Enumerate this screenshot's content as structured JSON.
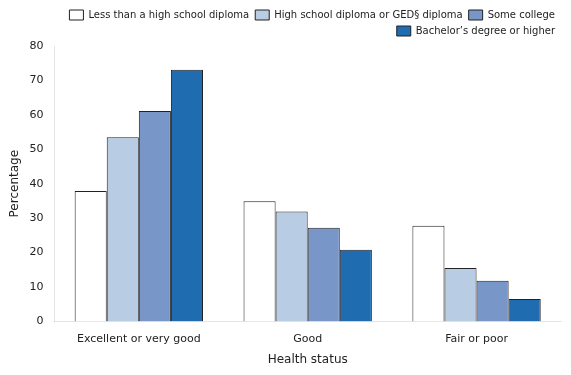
{
  "chart_data": {
    "type": "bar",
    "categories": [
      "Excellent or very good",
      "Good",
      "Fair or poor"
    ],
    "series": [
      {
        "name": "Less than a high school diploma",
        "color": "#ffffff",
        "values": [
          37.9,
          34.9,
          27.8
        ]
      },
      {
        "name": "High school diploma or GED§ diploma",
        "color": "#b8cce4",
        "values": [
          53.5,
          31.9,
          15.5
        ]
      },
      {
        "name": "Some college",
        "color": "#7896c8",
        "values": [
          61.1,
          27.2,
          11.8
        ]
      },
      {
        "name": "Bachelor’s degree or higher",
        "color": "#1f6cb0",
        "values": [
          73.1,
          20.8,
          6.5
        ]
      }
    ],
    "xlabel": "Health status",
    "ylabel": "Percentage",
    "ylim": [
      0,
      80
    ],
    "yticks": [
      0,
      10,
      20,
      30,
      40,
      50,
      60,
      70,
      80
    ],
    "grid": false,
    "legend": "upper right"
  }
}
